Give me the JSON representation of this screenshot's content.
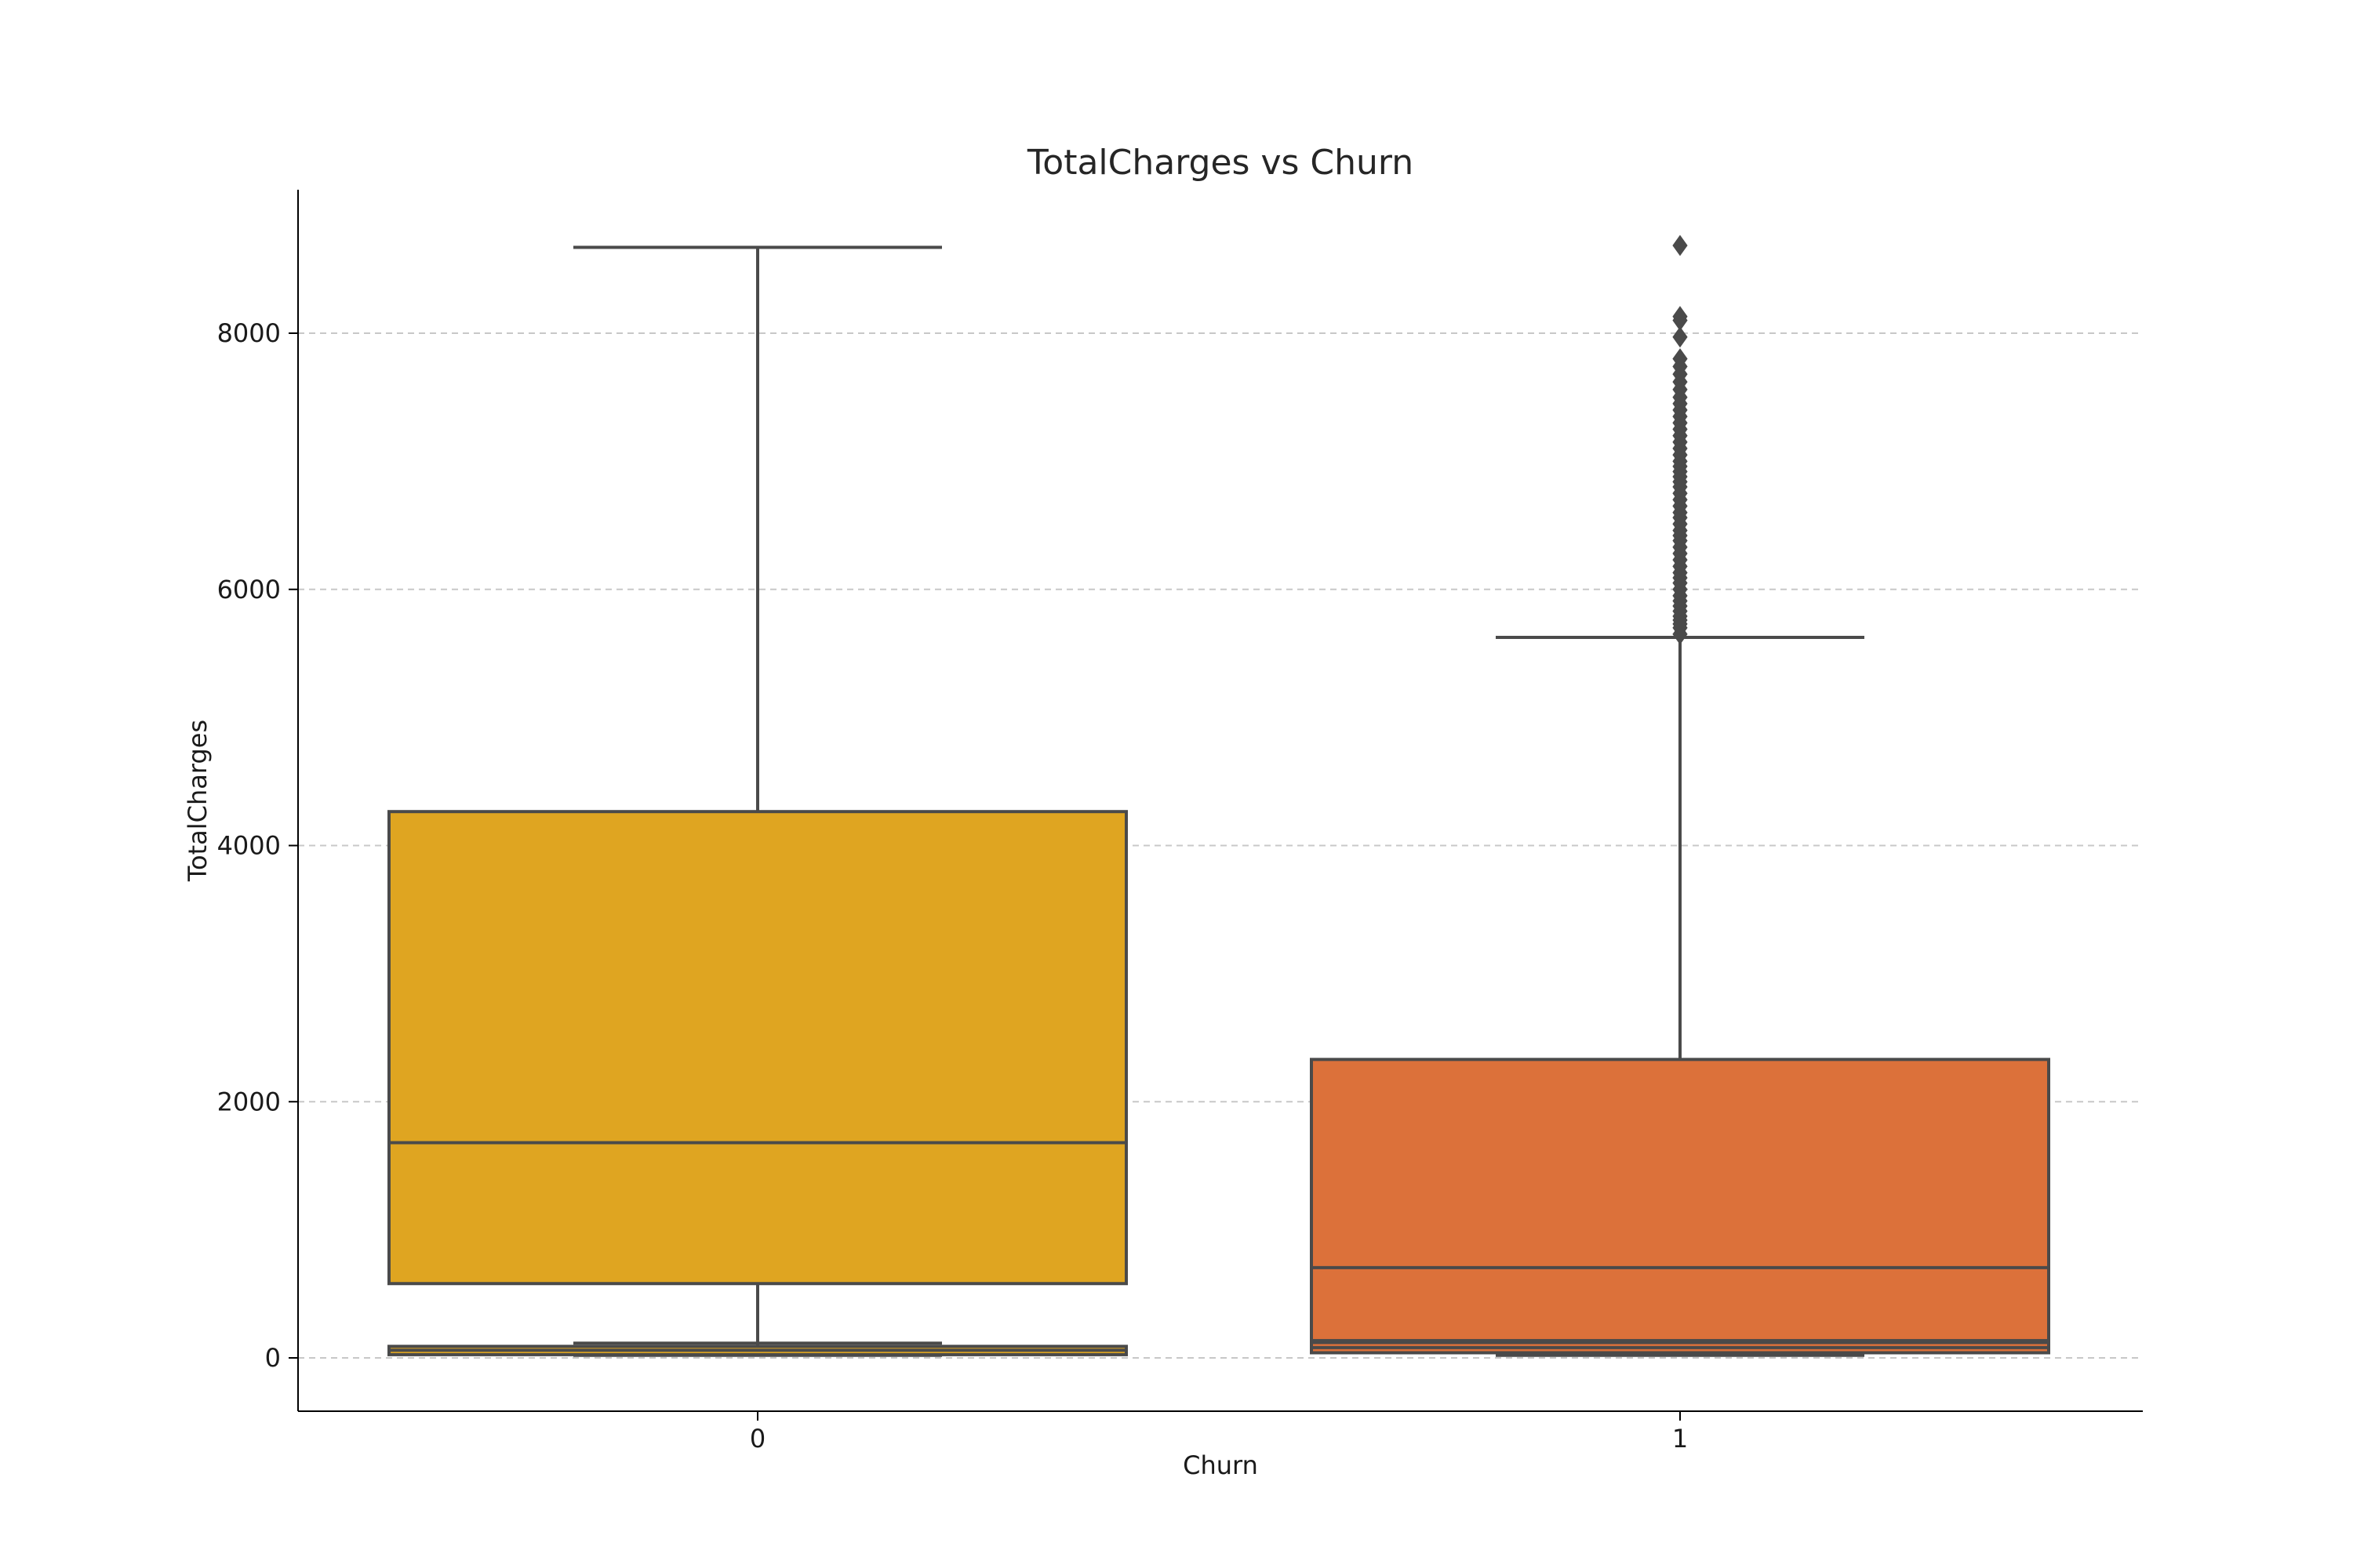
{
  "chart_data": {
    "type": "box",
    "title": "TotalCharges vs Churn",
    "xlabel": "Churn",
    "ylabel": "TotalCharges",
    "ylim": [
      -400,
      9100
    ],
    "yticks": [
      0,
      2000,
      4000,
      6000,
      8000
    ],
    "ytick_labels": [
      "0",
      "2000",
      "4000",
      "6000",
      "8000"
    ],
    "grid": "y-dashed",
    "categories": [
      "0",
      "1"
    ],
    "boxes": [
      {
        "category": "0",
        "color": "#DFA521",
        "q1": 580,
        "median": 1680,
        "q3": 4265,
        "whisker_low": 20,
        "whisker_high": 8670,
        "outliers": [],
        "inner_box": {
          "q1": 25,
          "median": 60,
          "q3": 90,
          "whisker_low": 20,
          "whisker_high": 115
        }
      },
      {
        "category": "1",
        "color": "#DC713A",
        "q1": 135,
        "median": 705,
        "q3": 2330,
        "whisker_low": 20,
        "whisker_high": 5625,
        "outliers": [
          5650,
          5700,
          5730,
          5760,
          5790,
          5830,
          5870,
          5910,
          5950,
          6000,
          6050,
          6090,
          6130,
          6180,
          6230,
          6280,
          6330,
          6380,
          6420,
          6460,
          6510,
          6560,
          6600,
          6650,
          6700,
          6750,
          6800,
          6840,
          6880,
          6920,
          6960,
          7000,
          7050,
          7100,
          7150,
          7200,
          7250,
          7300,
          7350,
          7400,
          7450,
          7500,
          7560,
          7620,
          7680,
          7740,
          7800,
          7970,
          8100,
          8130,
          8685
        ],
        "inner_box": {
          "q1": 40,
          "median": 80,
          "q3": 120,
          "whisker_low": 20,
          "whisker_high": 135
        }
      }
    ]
  },
  "colors": {
    "text": "#262626",
    "axis": "#000000",
    "box_edge": "#4a4a4a",
    "grid": "#c8c8c8"
  }
}
